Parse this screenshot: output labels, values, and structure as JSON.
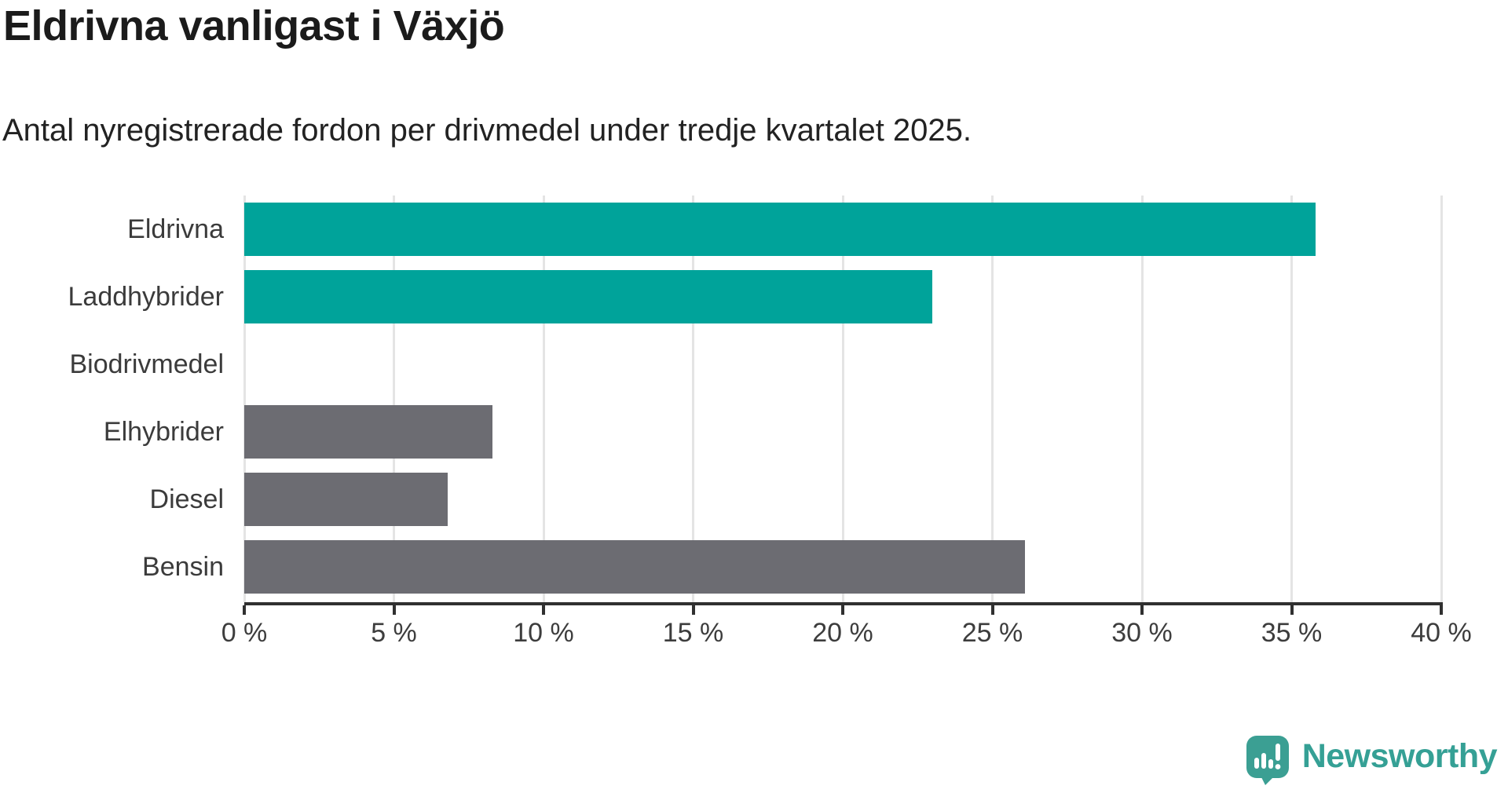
{
  "branding": {
    "name": "Newsworthy",
    "logo_color": "#35a095",
    "logo_icon": "speech-bubble-bar-chart-icon"
  },
  "colors": {
    "highlight_teal": "#00a39a",
    "neutral_gray": "#6c6c72",
    "gridline": "#e4e4e4",
    "axis": "#303030",
    "label_text": "#3b3b3b"
  },
  "chart_data": {
    "type": "bar",
    "orientation": "horizontal",
    "title": "Eldrivna vanligast i Växjö",
    "subtitle": "Antal nyregistrerade fordon per drivmedel under tredje kvartalet 2025.",
    "categories": [
      "Eldrivna",
      "Laddhybrider",
      "Biodrivmedel",
      "Elhybrider",
      "Diesel",
      "Bensin"
    ],
    "values": [
      35.8,
      23.0,
      0,
      8.3,
      6.8,
      26.1
    ],
    "unit": "%",
    "bar_colors": [
      "#00a39a",
      "#00a39a",
      "#6c6c72",
      "#6c6c72",
      "#6c6c72",
      "#6c6c72"
    ],
    "xlim": [
      0,
      40
    ],
    "x_tick_values": [
      0,
      5,
      10,
      15,
      20,
      25,
      30,
      35,
      40
    ],
    "x_tick_labels": [
      "0 %",
      "5 %",
      "10 %",
      "15 %",
      "20 %",
      "25 %",
      "30 %",
      "35 %",
      "40 %"
    ],
    "grid": true,
    "legend": false
  }
}
